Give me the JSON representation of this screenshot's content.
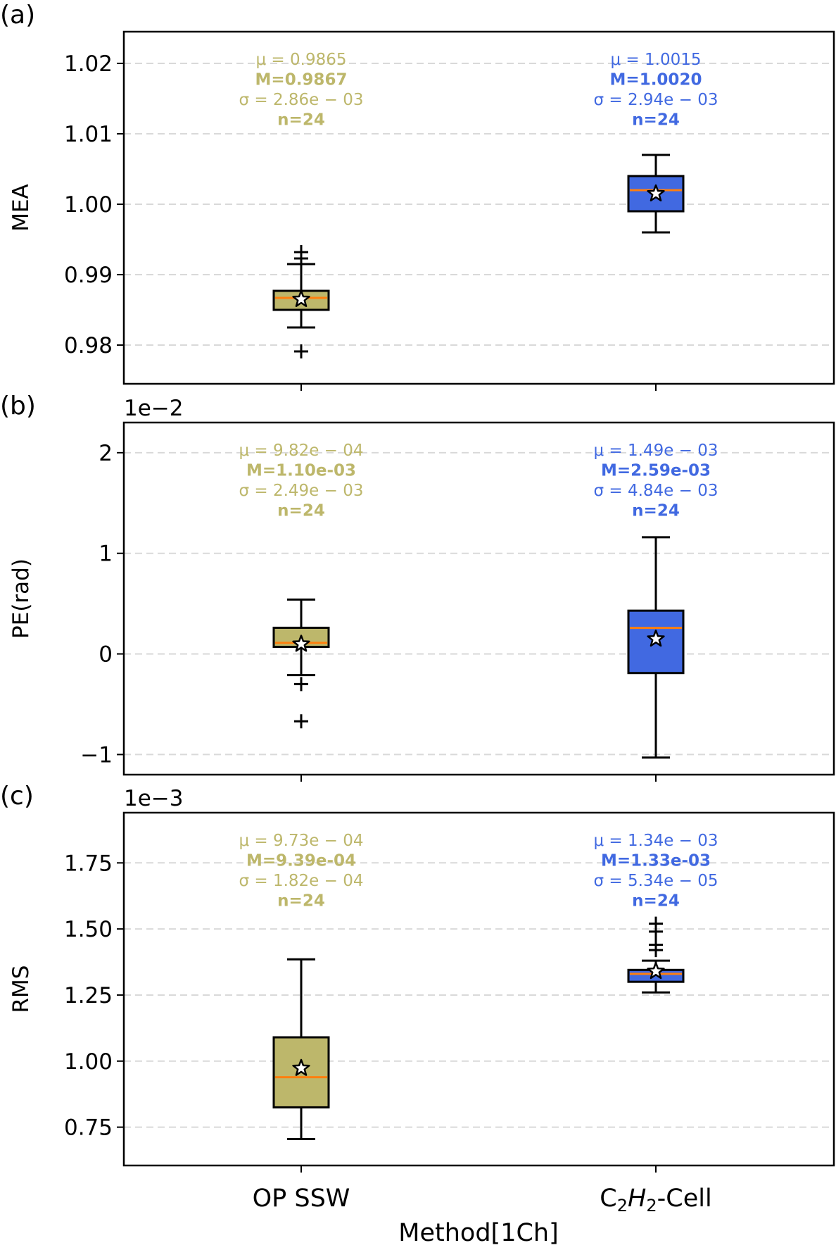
{
  "figure": {
    "xlabel": "Method[1Ch]",
    "categories": [
      "OP SSW",
      "C2H2-Cell"
    ],
    "category_label_parts": [
      [
        {
          "text": "OP SSW",
          "style": "normal"
        }
      ],
      [
        {
          "text": "C",
          "style": "normal"
        },
        {
          "text": "2",
          "style": "sub"
        },
        {
          "text": "H",
          "style": "italic"
        },
        {
          "text": "2",
          "style": "sub"
        },
        {
          "text": "-Cell",
          "style": "normal"
        }
      ]
    ],
    "colors": {
      "OP SSW": "#bdb76b",
      "C2H2-Cell": "#4169e1",
      "median": "#ff7f0e",
      "grid": "#d9d9d9",
      "axis": "#000000"
    }
  },
  "chart_data": [
    {
      "type": "box",
      "panel_label": "(a)",
      "ylabel": "MEA",
      "offset_text": "",
      "ylim": [
        0.9745,
        1.0245
      ],
      "yticks": [
        0.98,
        0.99,
        1.0,
        1.01,
        1.02
      ],
      "ytick_labels": [
        "0.98",
        "0.99",
        "1.00",
        "1.01",
        "1.02"
      ],
      "grid": "y-dashed",
      "boxes": [
        {
          "category": "OP SSW",
          "whisker_low": 0.9825,
          "q1": 0.985,
          "median": 0.9867,
          "q3": 0.9877,
          "whisker_high": 0.9915,
          "mean": 0.9865,
          "fliers": [
            0.9791,
            0.9932,
            0.9923
          ]
        },
        {
          "category": "C2H2-Cell",
          "whisker_low": 0.996,
          "q1": 0.999,
          "median": 1.002,
          "q3": 1.004,
          "whisker_high": 1.007,
          "mean": 1.0015,
          "fliers": []
        }
      ],
      "annotations": [
        {
          "category": "OP SSW",
          "lines": [
            "μ = 0.9865",
            "M=0.9867",
            "σ = 2.86e − 03",
            "n=24"
          ]
        },
        {
          "category": "C2H2-Cell",
          "lines": [
            "μ = 1.0015",
            "M=1.0020",
            "σ = 2.94e − 03",
            "n=24"
          ]
        }
      ]
    },
    {
      "type": "box",
      "panel_label": "(b)",
      "ylabel": "PE(rad)",
      "offset_text": "1e−2",
      "ylim": [
        -1.2,
        2.3
      ],
      "yticks": [
        -1,
        0,
        1,
        2
      ],
      "ytick_labels": [
        "−1",
        "0",
        "1",
        "2"
      ],
      "grid": "y-dashed",
      "boxes": [
        {
          "category": "OP SSW",
          "whisker_low": -0.21,
          "q1": 0.07,
          "median": 0.11,
          "q3": 0.26,
          "whisker_high": 0.54,
          "mean": 0.0982,
          "fliers": [
            -0.3,
            -0.67
          ]
        },
        {
          "category": "C2H2-Cell",
          "whisker_low": -1.03,
          "q1": -0.19,
          "median": 0.259,
          "q3": 0.43,
          "whisker_high": 1.16,
          "mean": 0.149,
          "fliers": []
        }
      ],
      "annotations": [
        {
          "category": "OP SSW",
          "lines": [
            "μ = 9.82e − 04",
            "M=1.10e-03",
            "σ = 2.49e − 03",
            "n=24"
          ]
        },
        {
          "category": "C2H2-Cell",
          "lines": [
            "μ = 1.49e − 03",
            "M=2.59e-03",
            "σ = 4.84e − 03",
            "n=24"
          ]
        }
      ]
    },
    {
      "type": "box",
      "panel_label": "(c)",
      "ylabel": "RMS",
      "offset_text": "1e−3",
      "ylim": [
        0.605,
        1.94
      ],
      "yticks": [
        0.75,
        1.0,
        1.25,
        1.5,
        1.75
      ],
      "ytick_labels": [
        "0.75",
        "1.00",
        "1.25",
        "1.50",
        "1.75"
      ],
      "grid": "y-dashed",
      "boxes": [
        {
          "category": "OP SSW",
          "whisker_low": 0.705,
          "q1": 0.825,
          "median": 0.939,
          "q3": 1.09,
          "whisker_high": 1.385,
          "mean": 0.973,
          "fliers": []
        },
        {
          "category": "C2H2-Cell",
          "whisker_low": 1.26,
          "q1": 1.3,
          "median": 1.33,
          "q3": 1.345,
          "whisker_high": 1.38,
          "mean": 1.34,
          "fliers": [
            1.42,
            1.44,
            1.49,
            1.52
          ]
        }
      ],
      "annotations": [
        {
          "category": "OP SSW",
          "lines": [
            "μ = 9.73e − 04",
            "M=9.39e-04",
            "σ = 1.82e − 04",
            "n=24"
          ]
        },
        {
          "category": "C2H2-Cell",
          "lines": [
            "μ = 1.34e − 03",
            "M=1.33e-03",
            "σ = 5.34e − 05",
            "n=24"
          ]
        }
      ]
    }
  ]
}
